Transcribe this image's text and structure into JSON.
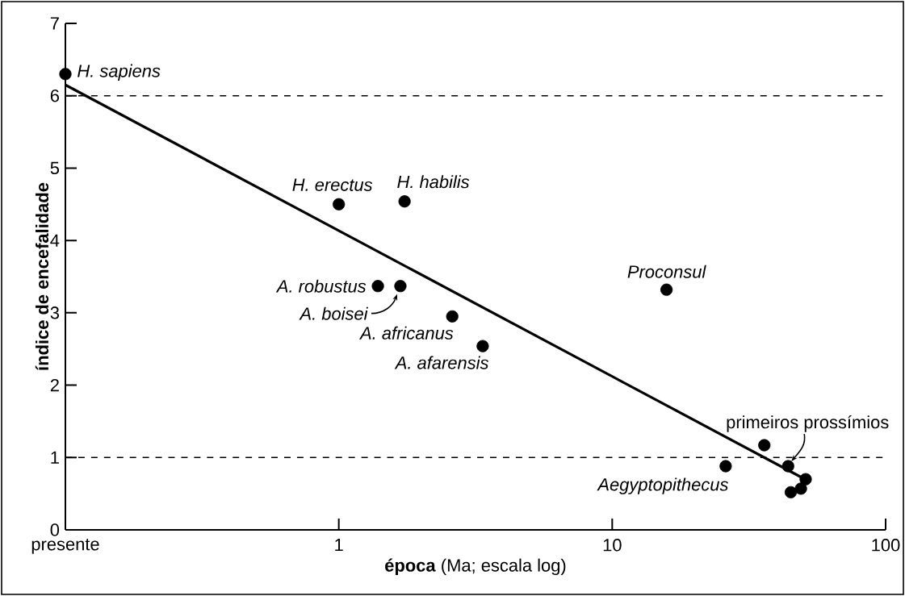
{
  "chart_data": {
    "type": "scatter",
    "xlabel": "**época** (Ma; escala log)",
    "ylabel": "índice de encefalidade",
    "log": "x",
    "xlim": [
      0.1,
      100
    ],
    "xticks": [
      {
        "value": 0.1,
        "label": "presente"
      },
      1,
      10,
      100
    ],
    "ylim": [
      0,
      7
    ],
    "yticks": [
      0,
      1,
      2,
      3,
      4,
      5,
      6,
      7
    ],
    "grid": false,
    "series": [
      {
        "type": "scatter",
        "color": "#000000",
        "marker": "circle",
        "x": [
          0.1,
          1.0,
          1.74,
          1.39,
          1.68,
          2.6,
          3.36,
          15.8,
          26,
          36,
          44,
          51,
          49,
          45
        ],
        "values": [
          6.3,
          4.5,
          4.54,
          3.37,
          3.37,
          2.95,
          2.54,
          3.32,
          0.88,
          1.17,
          0.88,
          0.7,
          0.57,
          0.52
        ]
      },
      {
        "type": "line",
        "color": "#000000",
        "line_style": "solid",
        "marker": "none",
        "x": [
          0.1,
          49
        ],
        "values": [
          6.15,
          0.73
        ]
      }
    ],
    "ref_lines": [
      {
        "axis": "y",
        "value": 6,
        "label": null,
        "color": "#000000",
        "line_style": "dashed"
      },
      {
        "axis": "y",
        "value": 1,
        "label": null,
        "color": "#000000",
        "line_style": "dashed"
      }
    ],
    "annotations": [
      {
        "text": "H. sapiens",
        "x": 0.1,
        "y": 6.3
      },
      {
        "text": "H. erectus",
        "x": 1.0,
        "y": 4.5
      },
      {
        "text": "H. habilis",
        "x": 1.74,
        "y": 4.54
      },
      {
        "text": "A. robustus",
        "x": 1.39,
        "y": 3.37
      },
      {
        "text": "A. boisei",
        "x": 1.68,
        "y": 3.37
      },
      {
        "text": "A. africanus",
        "x": 2.6,
        "y": 2.95
      },
      {
        "text": "A. afarensis",
        "x": 3.36,
        "y": 2.54
      },
      {
        "text": "Proconsul",
        "x": 15.8,
        "y": 3.32
      },
      {
        "text": "Aegyptopithecus",
        "x": 26,
        "y": 0.88
      },
      {
        "text": "primeiros prossímios",
        "x": 44,
        "y": 0.88
      }
    ]
  }
}
